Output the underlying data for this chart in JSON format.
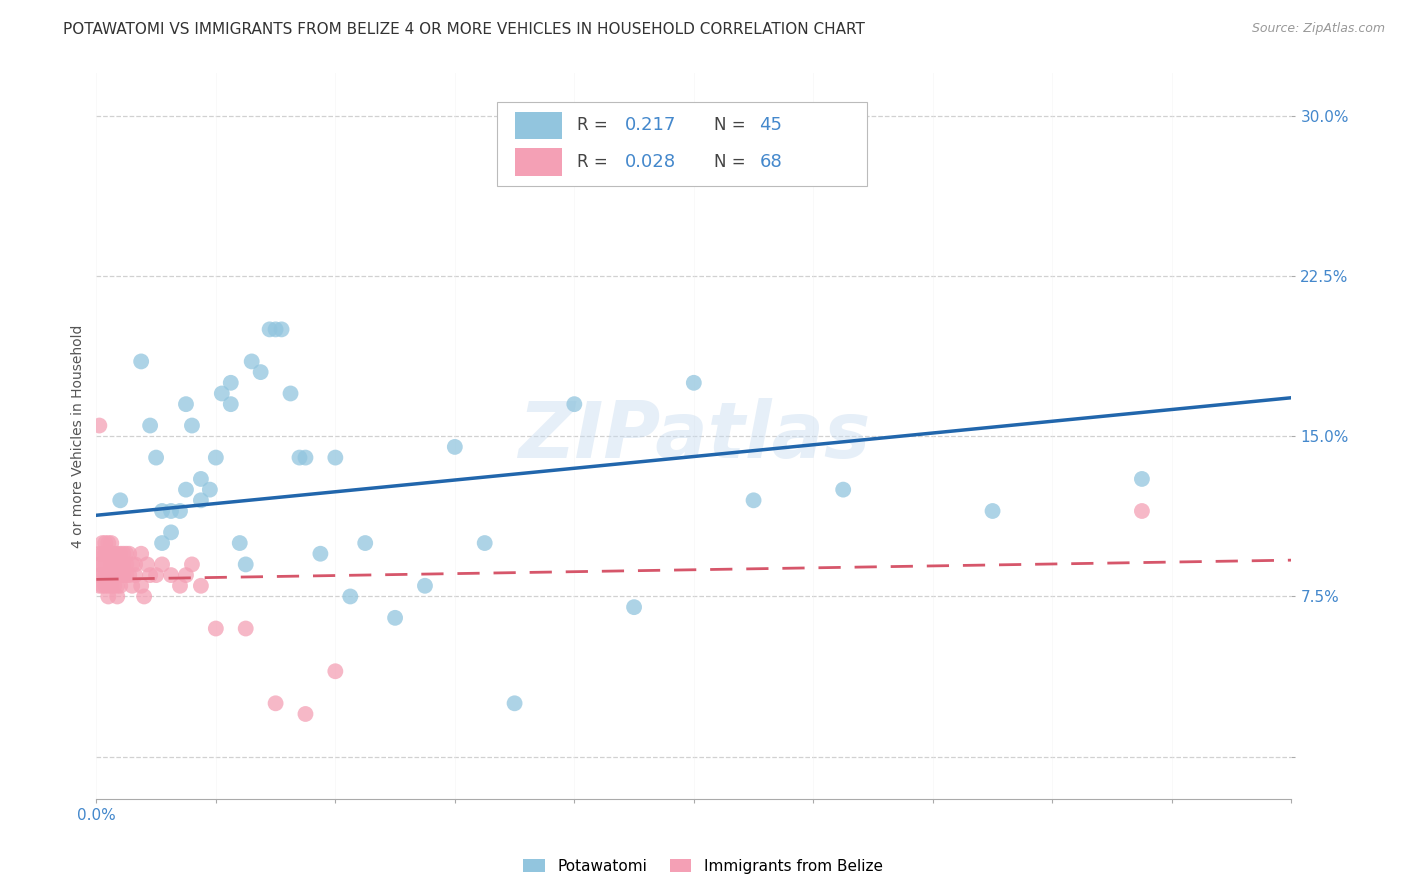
{
  "title": "POTAWATOMI VS IMMIGRANTS FROM BELIZE 4 OR MORE VEHICLES IN HOUSEHOLD CORRELATION CHART",
  "source": "Source: ZipAtlas.com",
  "ylabel": "4 or more Vehicles in Household",
  "x_min": 0.0,
  "x_max": 0.4,
  "y_min": -0.02,
  "y_max": 0.32,
  "x_ticks": [
    0.0,
    0.04,
    0.08,
    0.12,
    0.16,
    0.2,
    0.24,
    0.28,
    0.32,
    0.36,
    0.4
  ],
  "x_tick_labels_show": {
    "0.0": "0.0%"
  },
  "y_ticks": [
    0.0,
    0.075,
    0.15,
    0.225,
    0.3
  ],
  "y_tick_labels": [
    "",
    "7.5%",
    "15.0%",
    "22.5%",
    "30.0%"
  ],
  "blue_color": "#92c5de",
  "pink_color": "#f4a0b5",
  "blue_line_color": "#2166ac",
  "pink_line_color": "#d6566a",
  "blue_R": 0.217,
  "blue_N": 45,
  "pink_R": 0.028,
  "pink_N": 68,
  "legend_label_blue": "Potawatomi",
  "legend_label_pink": "Immigrants from Belize",
  "watermark": "ZIPatlas",
  "blue_scatter_x": [
    0.008,
    0.015,
    0.018,
    0.02,
    0.022,
    0.022,
    0.025,
    0.025,
    0.028,
    0.03,
    0.03,
    0.032,
    0.035,
    0.035,
    0.038,
    0.04,
    0.042,
    0.045,
    0.045,
    0.048,
    0.05,
    0.052,
    0.055,
    0.058,
    0.06,
    0.062,
    0.065,
    0.068,
    0.07,
    0.075,
    0.08,
    0.085,
    0.09,
    0.1,
    0.11,
    0.12,
    0.13,
    0.14,
    0.16,
    0.18,
    0.2,
    0.22,
    0.25,
    0.3,
    0.35
  ],
  "blue_scatter_y": [
    0.12,
    0.185,
    0.155,
    0.14,
    0.1,
    0.115,
    0.105,
    0.115,
    0.115,
    0.125,
    0.165,
    0.155,
    0.12,
    0.13,
    0.125,
    0.14,
    0.17,
    0.175,
    0.165,
    0.1,
    0.09,
    0.185,
    0.18,
    0.2,
    0.2,
    0.2,
    0.17,
    0.14,
    0.14,
    0.095,
    0.14,
    0.075,
    0.1,
    0.065,
    0.08,
    0.145,
    0.1,
    0.025,
    0.165,
    0.07,
    0.175,
    0.12,
    0.125,
    0.115,
    0.13
  ],
  "pink_scatter_x": [
    0.001,
    0.001,
    0.001,
    0.001,
    0.002,
    0.002,
    0.002,
    0.002,
    0.002,
    0.003,
    0.003,
    0.003,
    0.003,
    0.003,
    0.004,
    0.004,
    0.004,
    0.004,
    0.004,
    0.005,
    0.005,
    0.005,
    0.005,
    0.005,
    0.006,
    0.006,
    0.006,
    0.006,
    0.007,
    0.007,
    0.007,
    0.007,
    0.007,
    0.008,
    0.008,
    0.008,
    0.008,
    0.009,
    0.009,
    0.009,
    0.01,
    0.01,
    0.01,
    0.011,
    0.011,
    0.012,
    0.012,
    0.013,
    0.013,
    0.015,
    0.015,
    0.016,
    0.017,
    0.018,
    0.02,
    0.022,
    0.025,
    0.028,
    0.03,
    0.032,
    0.035,
    0.04,
    0.05,
    0.06,
    0.07,
    0.08,
    0.35,
    0.001
  ],
  "pink_scatter_y": [
    0.095,
    0.09,
    0.085,
    0.08,
    0.1,
    0.095,
    0.09,
    0.085,
    0.08,
    0.1,
    0.095,
    0.09,
    0.085,
    0.08,
    0.1,
    0.095,
    0.085,
    0.08,
    0.075,
    0.1,
    0.095,
    0.09,
    0.085,
    0.08,
    0.095,
    0.09,
    0.085,
    0.08,
    0.095,
    0.09,
    0.085,
    0.08,
    0.075,
    0.095,
    0.09,
    0.085,
    0.08,
    0.095,
    0.09,
    0.085,
    0.095,
    0.09,
    0.085,
    0.095,
    0.085,
    0.09,
    0.08,
    0.09,
    0.085,
    0.095,
    0.08,
    0.075,
    0.09,
    0.085,
    0.085,
    0.09,
    0.085,
    0.08,
    0.085,
    0.09,
    0.08,
    0.06,
    0.06,
    0.025,
    0.02,
    0.04,
    0.115,
    0.155
  ],
  "background_color": "#ffffff",
  "grid_color": "#cccccc",
  "tick_color": "#4488cc",
  "title_fontsize": 11,
  "axis_label_fontsize": 10,
  "tick_fontsize": 11,
  "blue_trend_x0": 0.0,
  "blue_trend_y0": 0.113,
  "blue_trend_x1": 0.4,
  "blue_trend_y1": 0.168,
  "pink_trend_x0": 0.0,
  "pink_trend_y0": 0.083,
  "pink_trend_x1": 0.4,
  "pink_trend_y1": 0.092
}
